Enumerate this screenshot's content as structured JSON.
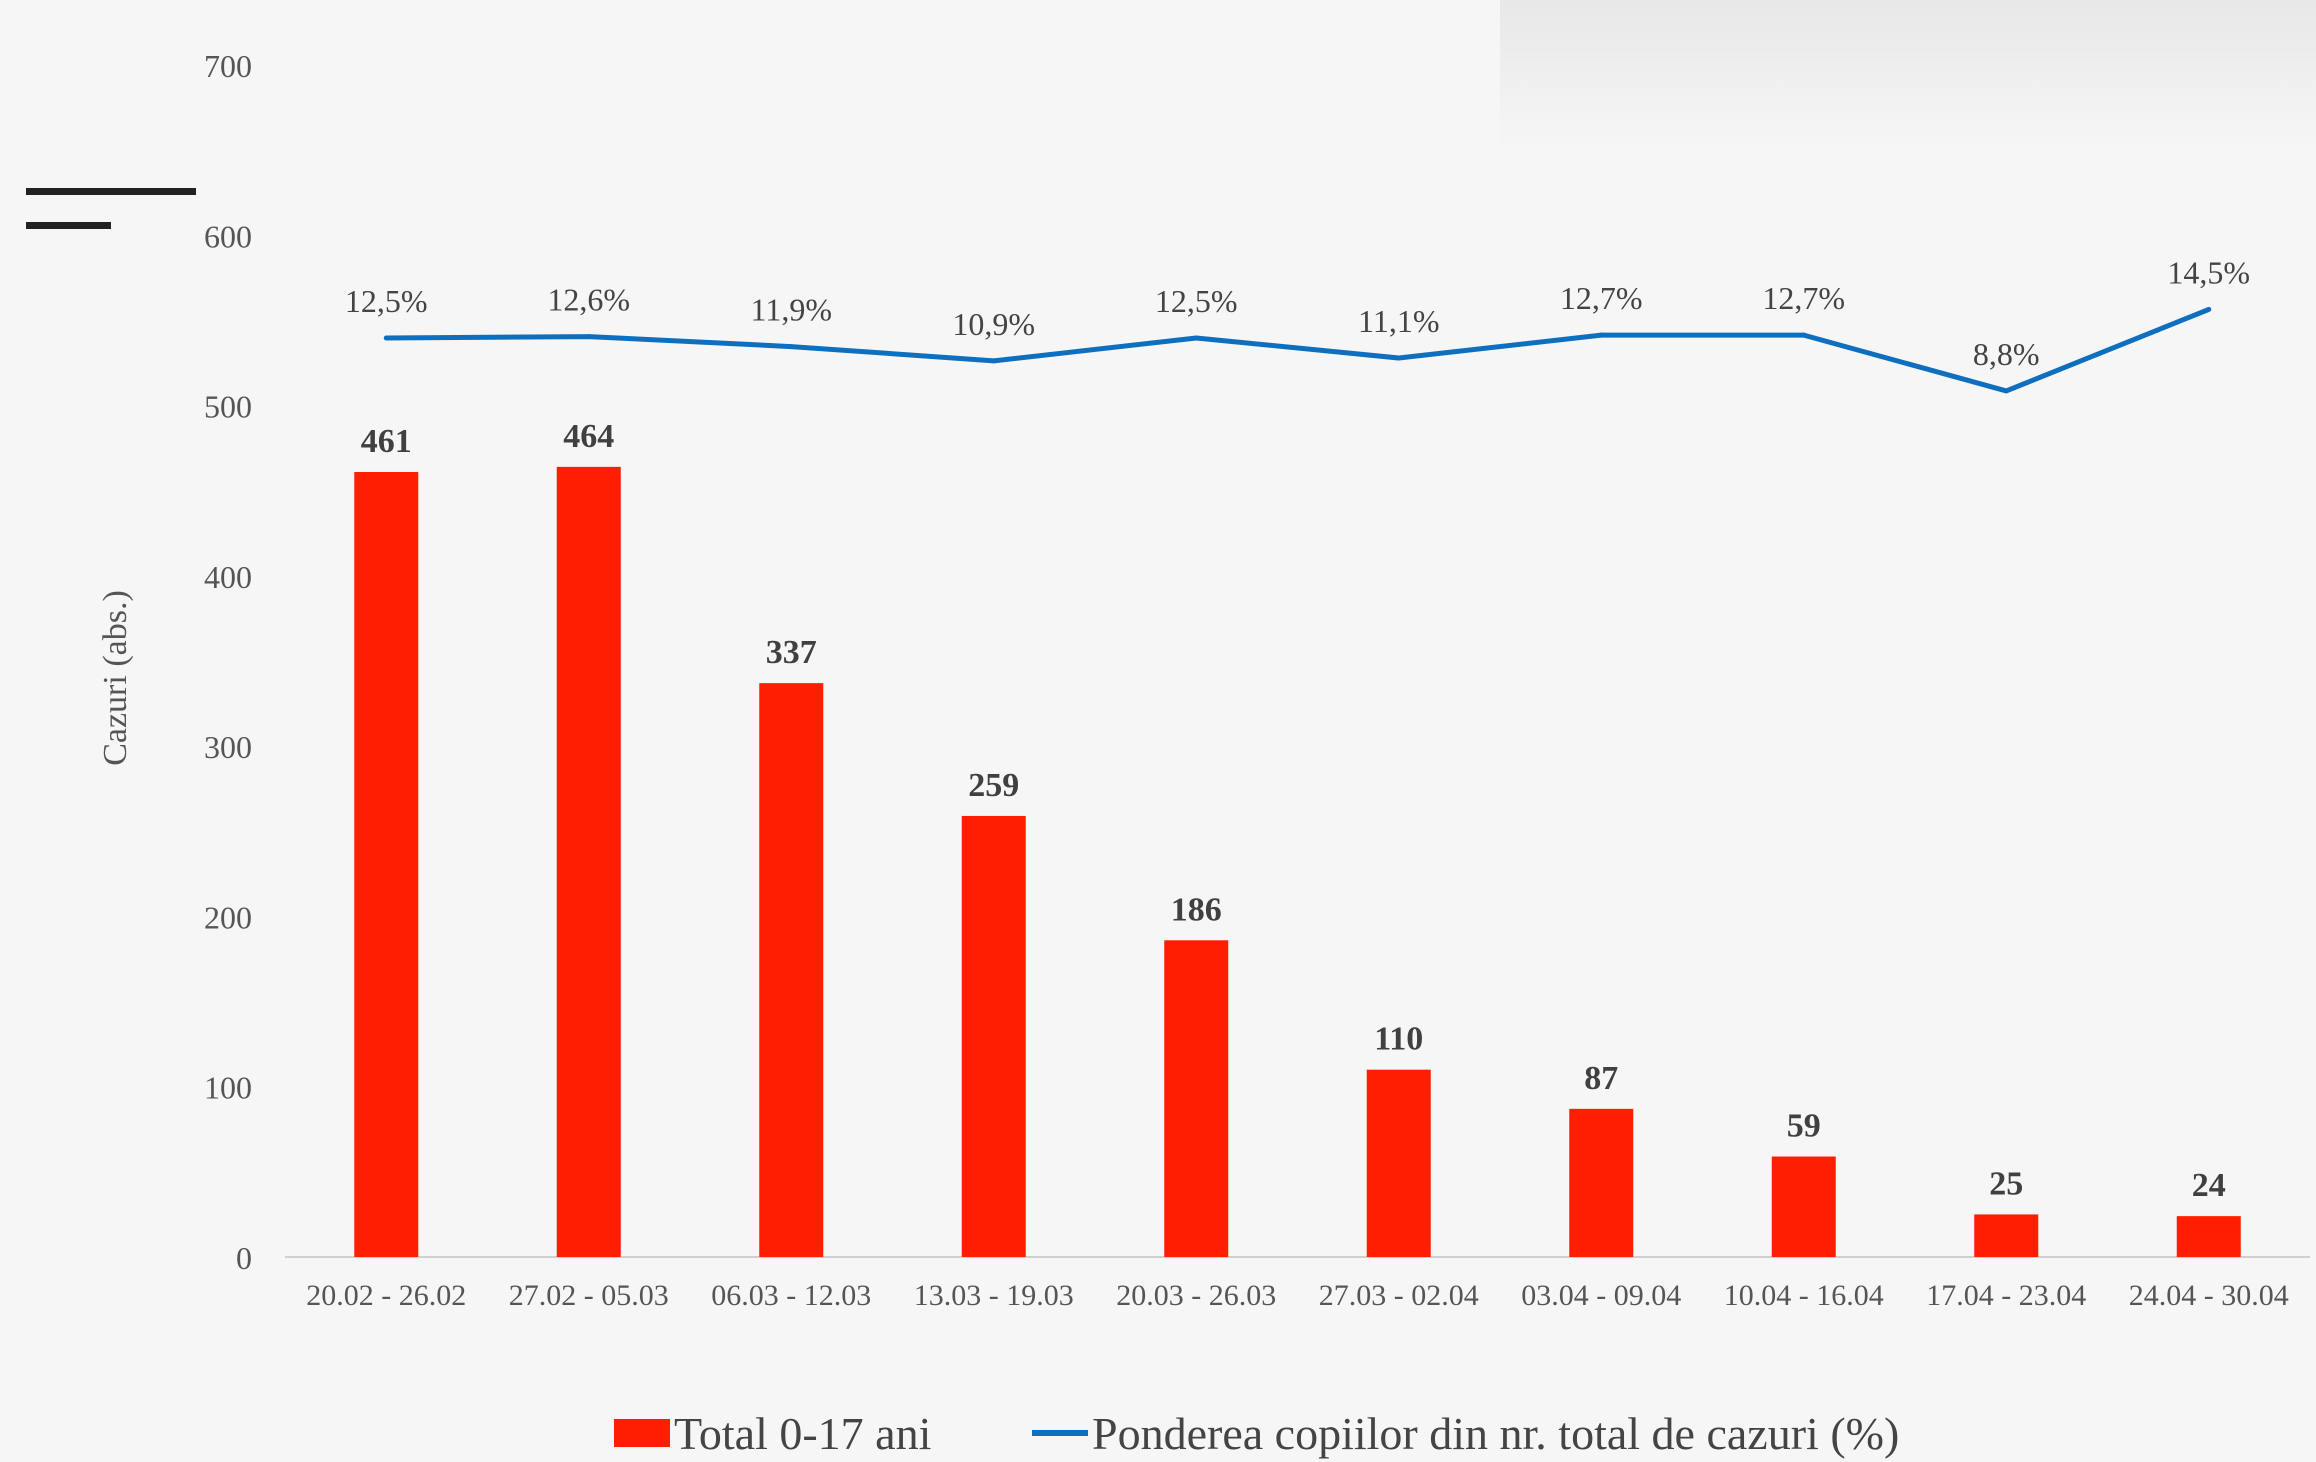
{
  "chart_data": {
    "type": "bar",
    "categories": [
      "20.02 - 26.02",
      "27.02 - 05.03",
      "06.03 - 12.03",
      "13.03 - 19.03",
      "20.03 - 26.03",
      "27.03 - 02.04",
      "03.04 - 09.04",
      "10.04 - 16.04",
      "17.04 - 23.04",
      "24.04 - 30.04"
    ],
    "series": [
      {
        "name": "Total 0-17 ani",
        "type": "bar",
        "color": "#ff1e00",
        "values": [
          461,
          464,
          337,
          259,
          186,
          110,
          87,
          59,
          25,
          24
        ],
        "labels": [
          "461",
          "464",
          "337",
          "259",
          "186",
          "110",
          "87",
          "59",
          "25",
          "24"
        ]
      },
      {
        "name": "Ponderea copiilor din nr. total de cazuri (%)",
        "type": "line",
        "color": "#0f6fbf",
        "values": [
          12.5,
          12.6,
          11.9,
          10.9,
          12.5,
          11.1,
          12.7,
          12.7,
          8.8,
          14.5
        ],
        "labels": [
          "12,5%",
          "12,6%",
          "11,9%",
          "10,9%",
          "12,5%",
          "11,1%",
          "12,7%",
          "12,7%",
          "8,8%",
          "14,5%"
        ]
      }
    ],
    "ylabel": "Cazuri (abs.)",
    "ylim": [
      0,
      700
    ],
    "yticks": [
      "0",
      "100",
      "200",
      "300",
      "400",
      "500",
      "600",
      "700"
    ],
    "grid": false,
    "legend": "bottom"
  }
}
